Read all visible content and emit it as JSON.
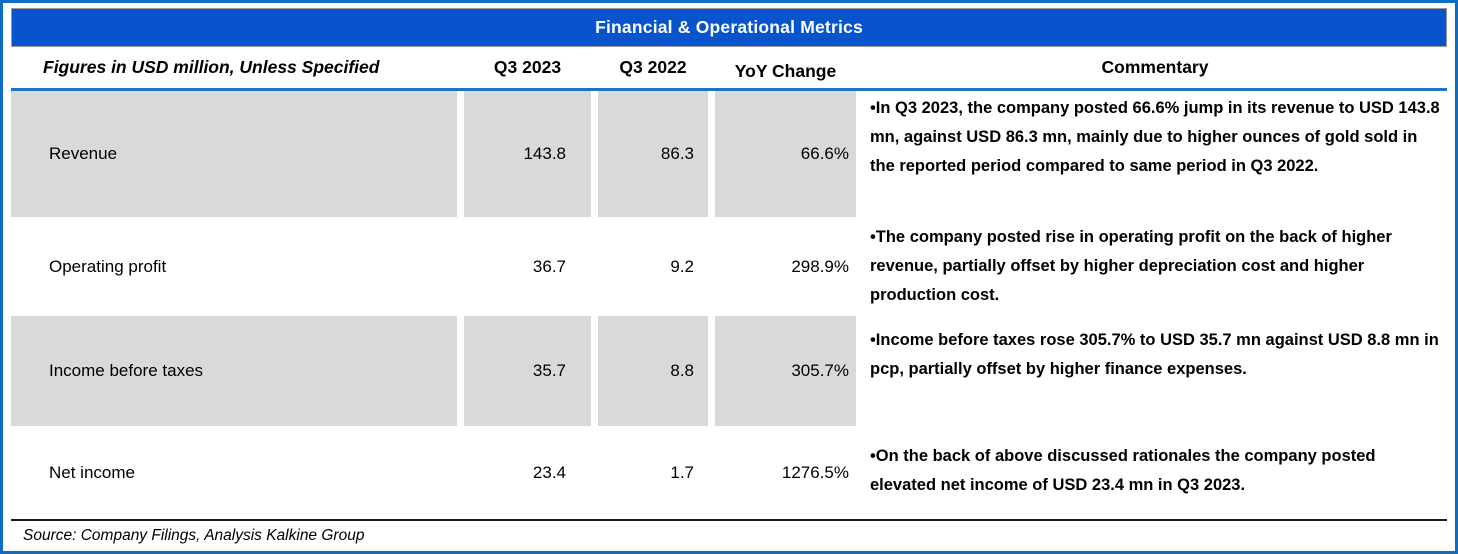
{
  "title": "Financial & Operational Metrics",
  "header": {
    "label": "Figures in USD million, Unless Specified",
    "col_q3_2023": "Q3 2023",
    "col_q3_2022": "Q3 2022",
    "col_yoy": "YoY Change",
    "col_commentary": "Commentary"
  },
  "rows": [
    {
      "label": "Revenue",
      "q3_2023": "143.8",
      "q3_2022": "86.3",
      "yoy": "66.6%",
      "commentary": "•In Q3 2023, the company posted 66.6% jump in its revenue to USD 143.8 mn, against USD 86.3 mn, mainly due to higher ounces of gold sold in the reported period compared to same period in Q3 2022."
    },
    {
      "label": "Operating profit",
      "q3_2023": "36.7",
      "q3_2022": "9.2",
      "yoy": "298.9%",
      "commentary": "•The company posted rise in operating profit on the back of higher revenue, partially offset by higher depreciation cost and higher production cost."
    },
    {
      "label": "Income before taxes",
      "q3_2023": "35.7",
      "q3_2022": "8.8",
      "yoy": "305.7%",
      "commentary": "•Income before taxes rose 305.7% to USD 35.7 mn against USD 8.8 mn in pcp, partially offset by higher finance expenses."
    },
    {
      "label": "Net income",
      "q3_2023": "23.4",
      "q3_2022": "1.7",
      "yoy": "1276.5%",
      "commentary": "•On the back of above discussed rationales the company posted elevated net income of USD 23.4 mn in Q3 2023."
    }
  ],
  "source": "Source: Company Filings, Analysis Kalkine Group",
  "colors": {
    "title_bar_blue": "#0754cd",
    "outer_border_blue": "#0e6cc2",
    "header_rule_blue": "#1e73c8",
    "row_shade_gray": "#d9d9d9"
  }
}
